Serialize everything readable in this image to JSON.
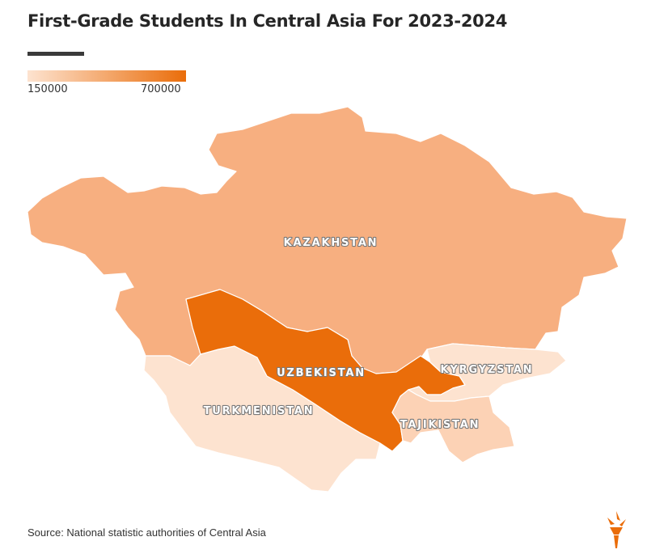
{
  "title": "First-Grade Students In Central Asia For 2023-2024",
  "legend": {
    "min_label": "150000",
    "max_label": "700000",
    "color_low": "#fde3d0",
    "color_high": "#ea6d0a"
  },
  "countries": {
    "kazakhstan": {
      "name": "KAZAKHSTAN",
      "color": "#f7af80"
    },
    "uzbekistan": {
      "name": "UZBEKISTAN",
      "color": "#ea6d0a"
    },
    "turkmenistan": {
      "name": "TURKMENISTAN",
      "color": "#fde3d0"
    },
    "kyrgyzstan": {
      "name": "KYRGYZSTAN",
      "color": "#fde3d0"
    },
    "tajikistan": {
      "name": "TAJIKISTAN",
      "color": "#fcd2b5"
    }
  },
  "source": "Source: National statistic authorities of Central Asia",
  "logo": {
    "icon": "torch-logo-icon",
    "color": "#ea6d0a"
  }
}
